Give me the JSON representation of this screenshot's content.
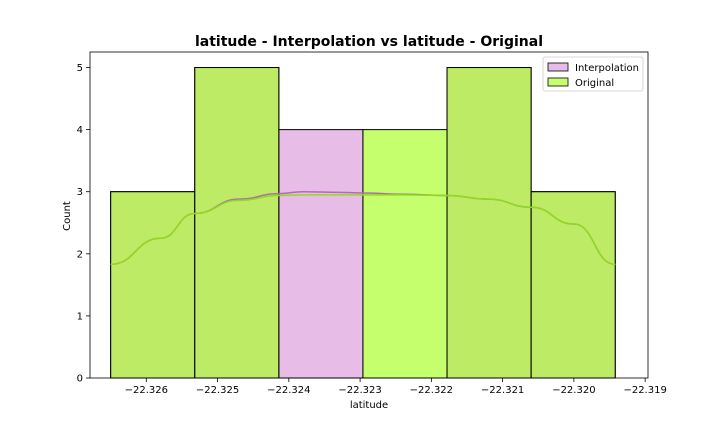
{
  "chart_data": {
    "type": "bar",
    "title": "latitude - Interpolation vs latitude - Original",
    "xlabel": "latitude",
    "ylabel": "Count",
    "xlim": [
      -22.32679,
      -22.31896
    ],
    "ylim": [
      0,
      5.25
    ],
    "xticks": [
      -22.326,
      -22.325,
      -22.324,
      -22.323,
      -22.322,
      -22.321,
      -22.32,
      -22.319
    ],
    "xtick_labels": [
      "−22.326",
      "−22.325",
      "−22.324",
      "−22.323",
      "−22.322",
      "−22.321",
      "−22.320",
      "−22.319"
    ],
    "yticks": [
      0,
      1,
      2,
      3,
      4,
      5
    ],
    "ytick_labels": [
      "0",
      "1",
      "2",
      "3",
      "4",
      "5"
    ],
    "bin_edges": [
      -22.3265,
      -22.32532,
      -22.32414,
      -22.32296,
      -22.32178,
      -22.3206,
      -22.31942
    ],
    "series": [
      {
        "name": "Interpolation",
        "color": "#dda0dd",
        "line_color": "#b26bb2",
        "values": [
          3,
          5,
          4,
          0,
          5,
          3
        ],
        "kde": [
          [
            -22.3265,
            1.83
          ],
          [
            -22.3258,
            2.25
          ],
          [
            -22.32532,
            2.65
          ],
          [
            -22.3247,
            2.88
          ],
          [
            -22.32414,
            2.97
          ],
          [
            -22.3238,
            3.0
          ],
          [
            -22.3233,
            2.99
          ],
          [
            -22.32296,
            2.98
          ],
          [
            -22.3224,
            2.96
          ],
          [
            -22.32178,
            2.94
          ],
          [
            -22.3212,
            2.88
          ],
          [
            -22.3206,
            2.75
          ],
          [
            -22.32,
            2.48
          ],
          [
            -22.31942,
            1.83
          ]
        ]
      },
      {
        "name": "Original",
        "color": "#adff2f",
        "line_color": "#8fdc1a",
        "values": [
          3,
          5,
          0,
          4,
          5,
          3
        ],
        "kde": [
          [
            -22.3265,
            1.83
          ],
          [
            -22.3258,
            2.25
          ],
          [
            -22.32532,
            2.65
          ],
          [
            -22.3247,
            2.86
          ],
          [
            -22.32414,
            2.94
          ],
          [
            -22.3238,
            2.95
          ],
          [
            -22.3233,
            2.95
          ],
          [
            -22.32296,
            2.95
          ],
          [
            -22.3224,
            2.95
          ],
          [
            -22.32178,
            2.94
          ],
          [
            -22.3212,
            2.88
          ],
          [
            -22.3206,
            2.75
          ],
          [
            -22.32,
            2.48
          ],
          [
            -22.31942,
            1.83
          ]
        ]
      }
    ],
    "legend_position": "top-right",
    "grid": false
  }
}
